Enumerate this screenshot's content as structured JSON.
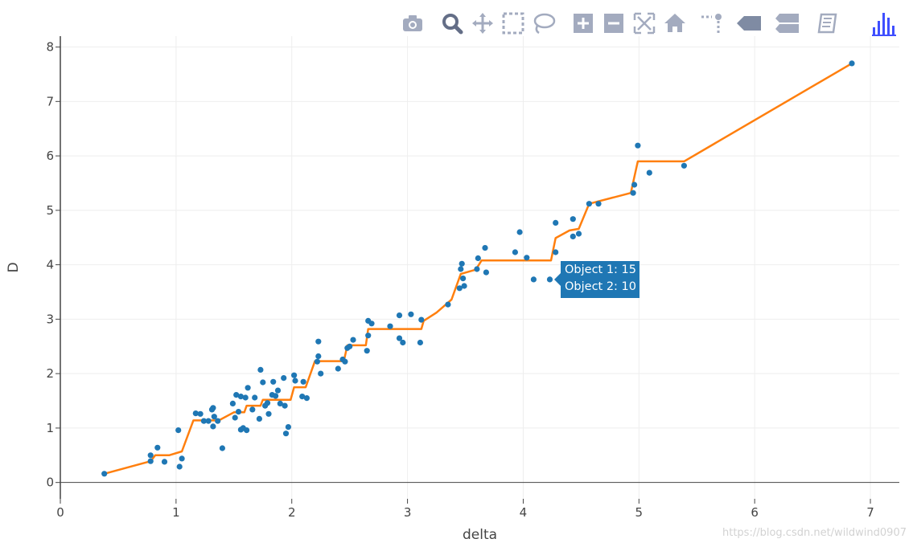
{
  "toolbar": {
    "buttons": [
      {
        "name": "camera-icon",
        "color": "#a3abbf"
      },
      {
        "name": "zoom-icon",
        "color": "#646e87"
      },
      {
        "name": "pan-icon",
        "color": "#a3abbf"
      },
      {
        "name": "box-select-icon",
        "color": "#a3abbf"
      },
      {
        "name": "lasso-select-icon",
        "color": "#a3abbf"
      },
      {
        "name": "zoom-in-icon",
        "color": "#a3abbf"
      },
      {
        "name": "zoom-out-icon",
        "color": "#a3abbf"
      },
      {
        "name": "autoscale-icon",
        "color": "#a3abbf"
      },
      {
        "name": "reset-axes-icon",
        "color": "#a3abbf"
      },
      {
        "name": "spike-lines-icon",
        "color": "#a3abbf"
      },
      {
        "name": "hover-closest-icon",
        "color": "#7f8ba3"
      },
      {
        "name": "hover-compare-icon",
        "color": "#a3abbf"
      },
      {
        "name": "notebook-icon",
        "color": "#a3abbf"
      },
      {
        "name": "plotly-logo-icon",
        "color": "#3f4fff"
      }
    ]
  },
  "tooltip": {
    "line1": "Object 1: 15",
    "line2": "Object 2: 10",
    "color": "#1f77b4"
  },
  "watermark": "https://blog.csdn.net/wildwind0907",
  "chart_data": {
    "type": "scatter",
    "xlabel": "delta",
    "ylabel": "D",
    "xlim": [
      0,
      7.25
    ],
    "ylim": [
      -0.3,
      8.2
    ],
    "xticks": [
      0,
      1,
      2,
      3,
      4,
      5,
      6,
      7
    ],
    "yticks": [
      0,
      1,
      2,
      3,
      4,
      5,
      6,
      7,
      8
    ],
    "grid": true,
    "colors": {
      "points": "#1f77b4",
      "line": "#ff7f0e"
    },
    "series": [
      {
        "mode": "markers",
        "points": [
          [
            0.38,
            0.16
          ],
          [
            0.78,
            0.39
          ],
          [
            0.78,
            0.5
          ],
          [
            0.84,
            0.64
          ],
          [
            0.9,
            0.38
          ],
          [
            1.03,
            0.29
          ],
          [
            1.05,
            0.44
          ],
          [
            1.02,
            0.96
          ],
          [
            1.17,
            1.27
          ],
          [
            1.21,
            1.26
          ],
          [
            1.24,
            1.13
          ],
          [
            1.28,
            1.13
          ],
          [
            1.31,
            1.34
          ],
          [
            1.32,
            1.37
          ],
          [
            1.32,
            1.03
          ],
          [
            1.33,
            1.21
          ],
          [
            1.36,
            1.13
          ],
          [
            1.4,
            0.63
          ],
          [
            1.49,
            1.45
          ],
          [
            1.51,
            1.19
          ],
          [
            1.52,
            1.61
          ],
          [
            1.54,
            1.3
          ],
          [
            1.56,
            1.58
          ],
          [
            1.56,
            0.97
          ],
          [
            1.58,
            1.0
          ],
          [
            1.6,
            1.56
          ],
          [
            1.61,
            0.96
          ],
          [
            1.62,
            1.74
          ],
          [
            1.66,
            1.34
          ],
          [
            1.68,
            1.56
          ],
          [
            1.72,
            1.17
          ],
          [
            1.73,
            2.07
          ],
          [
            1.75,
            1.84
          ],
          [
            1.77,
            1.41
          ],
          [
            1.79,
            1.46
          ],
          [
            1.8,
            1.26
          ],
          [
            1.83,
            1.61
          ],
          [
            1.84,
            1.85
          ],
          [
            1.86,
            1.59
          ],
          [
            1.88,
            1.69
          ],
          [
            1.9,
            1.45
          ],
          [
            1.93,
            1.92
          ],
          [
            1.94,
            1.41
          ],
          [
            1.95,
            0.9
          ],
          [
            1.97,
            1.02
          ],
          [
            2.02,
            1.97
          ],
          [
            2.03,
            1.87
          ],
          [
            2.09,
            1.58
          ],
          [
            2.1,
            1.85
          ],
          [
            2.13,
            1.55
          ],
          [
            2.22,
            2.22
          ],
          [
            2.23,
            2.32
          ],
          [
            2.23,
            2.59
          ],
          [
            2.25,
            2.0
          ],
          [
            2.4,
            2.09
          ],
          [
            2.44,
            2.26
          ],
          [
            2.46,
            2.22
          ],
          [
            2.48,
            2.47
          ],
          [
            2.5,
            2.5
          ],
          [
            2.53,
            2.62
          ],
          [
            2.65,
            2.42
          ],
          [
            2.66,
            2.97
          ],
          [
            2.66,
            2.7
          ],
          [
            2.69,
            2.92
          ],
          [
            2.85,
            2.87
          ],
          [
            2.93,
            2.65
          ],
          [
            2.93,
            3.07
          ],
          [
            2.96,
            2.57
          ],
          [
            3.03,
            3.09
          ],
          [
            3.11,
            2.57
          ],
          [
            3.12,
            2.99
          ],
          [
            3.35,
            3.27
          ],
          [
            3.45,
            3.57
          ],
          [
            3.46,
            3.92
          ],
          [
            3.47,
            4.02
          ],
          [
            3.48,
            3.75
          ],
          [
            3.49,
            3.61
          ],
          [
            3.6,
            3.92
          ],
          [
            3.61,
            4.12
          ],
          [
            3.67,
            4.31
          ],
          [
            3.68,
            3.86
          ],
          [
            3.93,
            4.23
          ],
          [
            3.97,
            4.6
          ],
          [
            4.03,
            4.13
          ],
          [
            4.09,
            3.73
          ],
          [
            4.23,
            3.73
          ],
          [
            4.28,
            4.23
          ],
          [
            4.28,
            4.77
          ],
          [
            4.43,
            4.84
          ],
          [
            4.43,
            4.52
          ],
          [
            4.48,
            4.57
          ],
          [
            4.57,
            5.12
          ],
          [
            4.65,
            5.12
          ],
          [
            4.95,
            5.32
          ],
          [
            4.96,
            5.47
          ],
          [
            4.99,
            6.19
          ],
          [
            5.09,
            5.69
          ],
          [
            5.39,
            5.82
          ],
          [
            6.84,
            7.7
          ]
        ]
      },
      {
        "mode": "lines",
        "points": [
          [
            0.38,
            0.16
          ],
          [
            0.78,
            0.39
          ],
          [
            0.82,
            0.5
          ],
          [
            0.94,
            0.5
          ],
          [
            1.05,
            0.57
          ],
          [
            1.15,
            1.14
          ],
          [
            1.37,
            1.14
          ],
          [
            1.5,
            1.29
          ],
          [
            1.59,
            1.29
          ],
          [
            1.61,
            1.41
          ],
          [
            1.73,
            1.41
          ],
          [
            1.75,
            1.52
          ],
          [
            1.99,
            1.52
          ],
          [
            2.02,
            1.75
          ],
          [
            2.12,
            1.75
          ],
          [
            2.2,
            2.23
          ],
          [
            2.45,
            2.23
          ],
          [
            2.48,
            2.52
          ],
          [
            2.64,
            2.52
          ],
          [
            2.66,
            2.82
          ],
          [
            3.12,
            2.82
          ],
          [
            3.14,
            2.97
          ],
          [
            3.25,
            3.12
          ],
          [
            3.38,
            3.36
          ],
          [
            3.46,
            3.83
          ],
          [
            3.59,
            3.91
          ],
          [
            3.64,
            4.08
          ],
          [
            4.24,
            4.08
          ],
          [
            4.28,
            4.49
          ],
          [
            4.4,
            4.63
          ],
          [
            4.48,
            4.66
          ],
          [
            4.57,
            5.12
          ],
          [
            4.93,
            5.32
          ],
          [
            4.99,
            5.9
          ],
          [
            5.39,
            5.9
          ],
          [
            6.84,
            7.7
          ]
        ]
      }
    ]
  }
}
